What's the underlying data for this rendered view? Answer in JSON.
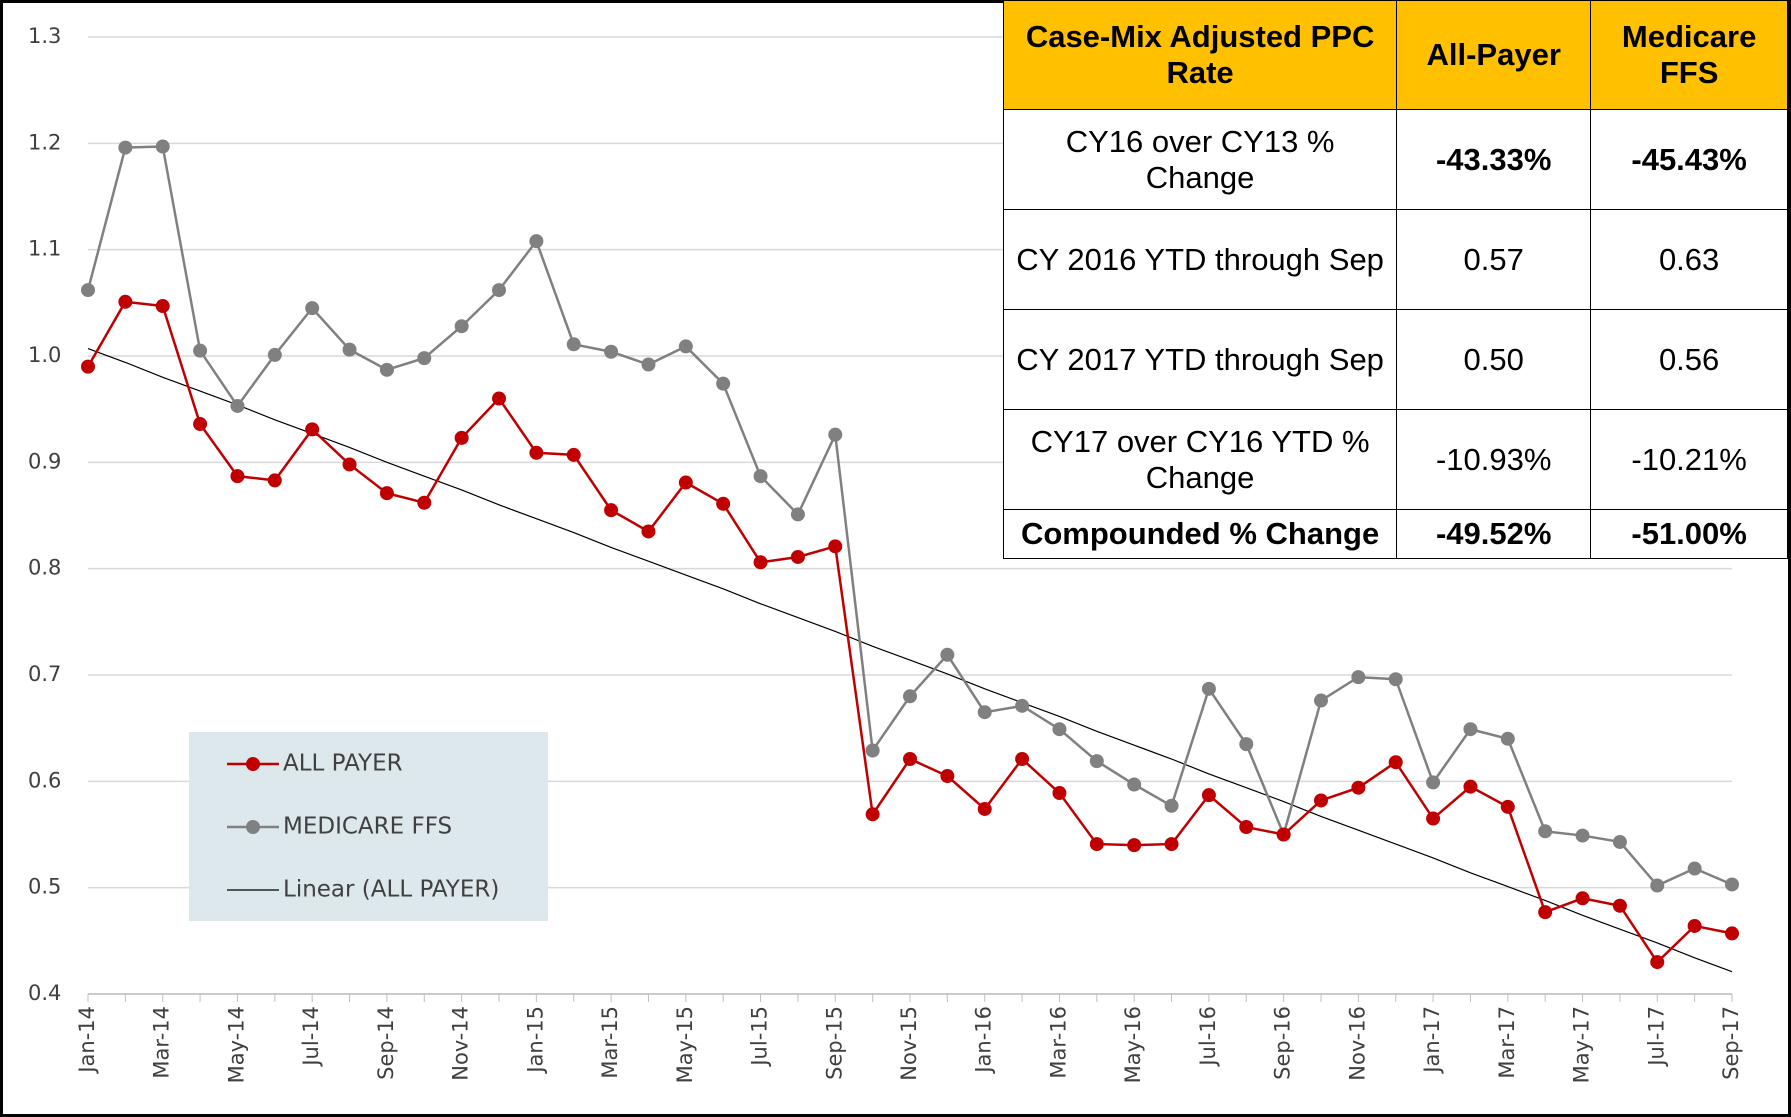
{
  "chart_data": {
    "type": "line",
    "categories": [
      "Jan-14",
      null,
      "Mar-14",
      null,
      "May-14",
      null,
      "Jul-14",
      null,
      "Sep-14",
      null,
      "Nov-14",
      null,
      "Jan-15",
      null,
      "Mar-15",
      null,
      "May-15",
      null,
      "Jul-15",
      null,
      "Sep-15",
      null,
      "Nov-15",
      null,
      "Jan-16",
      null,
      "Mar-16",
      null,
      "May-16",
      null,
      "Jul-16",
      null,
      "Sep-16",
      null,
      "Nov-16",
      null,
      "Jan-17",
      null,
      "Mar-17",
      null,
      "May-17",
      null,
      "Jul-17",
      null,
      "Sep-17"
    ],
    "series": [
      {
        "name": "ALL PAYER",
        "color": "#c00000",
        "marker": true,
        "values": [
          0.99,
          1.051,
          1.047,
          0.936,
          0.887,
          0.883,
          0.931,
          0.898,
          0.871,
          0.862,
          0.923,
          0.96,
          0.909,
          0.907,
          0.855,
          0.835,
          0.881,
          0.861,
          0.806,
          0.811,
          0.821,
          0.569,
          0.621,
          0.605,
          0.574,
          0.621,
          0.589,
          0.541,
          0.54,
          0.541,
          0.587,
          0.557,
          0.55,
          0.582,
          0.594,
          0.618,
          0.565,
          0.595,
          0.576,
          0.477,
          0.49,
          0.483,
          0.43,
          0.464,
          0.457
        ]
      },
      {
        "name": "MEDICARE FFS",
        "color": "#808080",
        "marker": true,
        "values": [
          1.062,
          1.196,
          1.197,
          1.005,
          0.953,
          1.001,
          1.045,
          1.006,
          0.987,
          0.998,
          1.028,
          1.062,
          1.108,
          1.011,
          1.004,
          0.992,
          1.009,
          0.974,
          0.887,
          0.851,
          0.926,
          0.629,
          0.68,
          0.719,
          0.665,
          0.671,
          0.649,
          0.619,
          0.597,
          0.577,
          0.687,
          0.635,
          0.55,
          0.676,
          0.698,
          0.696,
          0.599,
          0.649,
          0.64,
          0.553,
          0.549,
          0.543,
          0.502,
          0.518,
          0.503
        ]
      },
      {
        "name": "Linear (ALL PAYER)",
        "color": "#000000",
        "marker": false,
        "values": [
          1.007,
          0.994,
          0.98,
          0.967,
          0.954,
          0.94,
          0.927,
          0.914,
          0.9,
          0.887,
          0.874,
          0.86,
          0.847,
          0.834,
          0.82,
          0.807,
          0.794,
          0.781,
          0.767,
          0.754,
          0.741,
          0.727,
          0.714,
          0.701,
          0.687,
          0.674,
          0.661,
          0.647,
          0.634,
          0.621,
          0.607,
          0.594,
          0.581,
          0.567,
          0.554,
          0.541,
          0.528,
          0.514,
          0.501,
          0.488,
          0.474,
          0.461,
          0.448,
          0.434,
          0.421
        ]
      }
    ],
    "ylim": [
      0.4,
      1.3
    ],
    "yticks": [
      0.4,
      0.5,
      0.6,
      0.7,
      0.8,
      0.9,
      {
        "value": 1,
        "label": "1.0"
      },
      1.1,
      1.2,
      1.3
    ],
    "grid": true,
    "legend": "lower left"
  },
  "table": {
    "header": [
      "Case-Mix Adjusted PPC Rate",
      "All-Payer",
      "Medicare FFS"
    ],
    "rows": [
      [
        "CY16 over CY13 % Change",
        "-43.33%",
        "-45.43%"
      ],
      [
        "CY 2016 YTD through Sep",
        "0.57",
        "0.63"
      ],
      [
        "CY 2017 YTD through Sep",
        "0.50",
        "0.56"
      ],
      [
        "CY17 over CY16 YTD % Change",
        "-10.93%",
        "-10.21%"
      ],
      [
        "Compounded % Change",
        "-49.52%",
        "-51.00%"
      ]
    ]
  }
}
